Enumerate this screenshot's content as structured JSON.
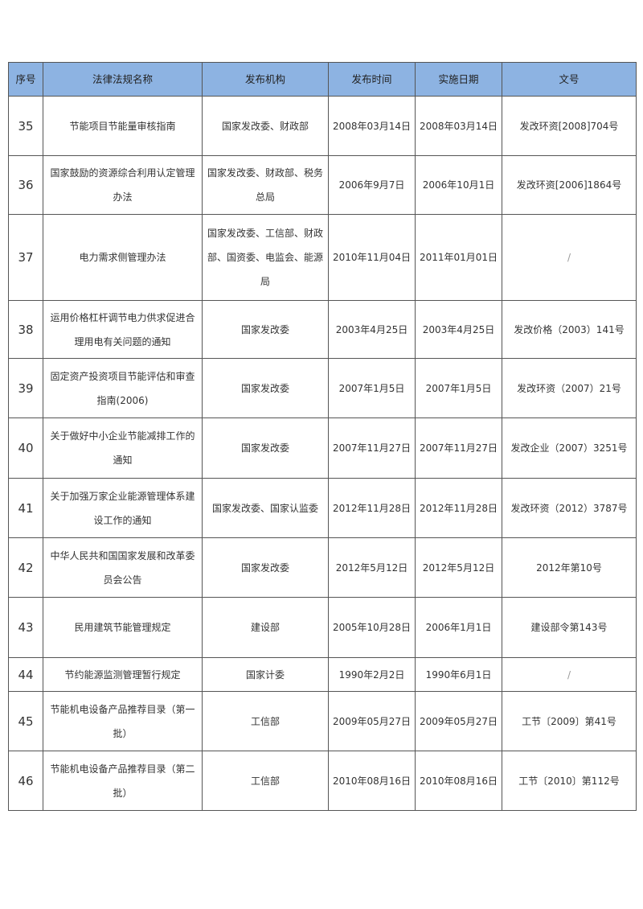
{
  "header": [
    "序号",
    "法律法规名称",
    "发布机构",
    "发布时间",
    "实施日期",
    "文号"
  ],
  "rows": [
    {
      "no": "35",
      "name": "节能项目节能量审核指南",
      "org": "国家发改委、财政部",
      "pub": "2008年03月14日",
      "eff": "2008年03月14日",
      "doc": "发改环资[2008]704号"
    },
    {
      "no": "36",
      "name": "国家鼓励的资源综合利用认定管理办法",
      "org": "国家发改委、财政部、税务总局",
      "pub": "2006年9月7日",
      "eff": "2006年10月1日",
      "doc": "发改环资[2006]1864号"
    },
    {
      "no": "37",
      "name": "电力需求侧管理办法",
      "org": "国家发改委、工信部、财政部、国资委、电监会、能源局",
      "pub": "2010年11月04日",
      "eff": "2011年01月01日",
      "doc": "/"
    },
    {
      "no": "38",
      "name": "运用价格杠杆调节电力供求促进合理用电有关问题的通知",
      "org": "国家发改委",
      "pub": "2003年4月25日",
      "eff": "2003年4月25日",
      "doc": "发改价格（2003）141号"
    },
    {
      "no": "39",
      "name": "固定资产投资项目节能评估和审查指南(2006)",
      "org": "国家发改委",
      "pub": "2007年1月5日",
      "eff": "2007年1月5日",
      "doc": "发改环资（2007）21号"
    },
    {
      "no": "40",
      "name": "关于做好中小企业节能减排工作的通知",
      "org": "国家发改委",
      "pub": "2007年11月27日",
      "eff": "2007年11月27日",
      "doc": "发改企业（2007）3251号"
    },
    {
      "no": "41",
      "name": "关于加强万家企业能源管理体系建设工作的通知",
      "org": "国家发改委、国家认监委",
      "pub": "2012年11月28日",
      "eff": "2012年11月28日",
      "doc": "发改环资（2012）3787号"
    },
    {
      "no": "42",
      "name": "中华人民共和国国家发展和改革委员会公告",
      "org": "国家发改委",
      "pub": "2012年5月12日",
      "eff": "2012年5月12日",
      "doc": "2012年第10号"
    },
    {
      "no": "43",
      "name": "民用建筑节能管理规定",
      "org": "建设部",
      "pub": "2005年10月28日",
      "eff": "2006年1月1日",
      "doc": "建设部令第143号"
    },
    {
      "no": "44",
      "name": "节约能源监测管理暂行规定",
      "org": "国家计委",
      "pub": "1990年2月2日",
      "eff": "1990年6月1日",
      "doc": "/"
    },
    {
      "no": "45",
      "name": "节能机电设备产品推荐目录（第一批）",
      "org": "工信部",
      "pub": "2009年05月27日",
      "eff": "2009年05月27日",
      "doc": "工节〔2009〕第41号"
    },
    {
      "no": "46",
      "name": "节能机电设备产品推荐目录（第二批）",
      "org": "工信部",
      "pub": "2010年08月16日",
      "eff": "2010年08月16日",
      "doc": "工节〔2010〕第112号"
    }
  ],
  "colors": {
    "header_bg": "#8db3e2",
    "border": "#555555"
  }
}
